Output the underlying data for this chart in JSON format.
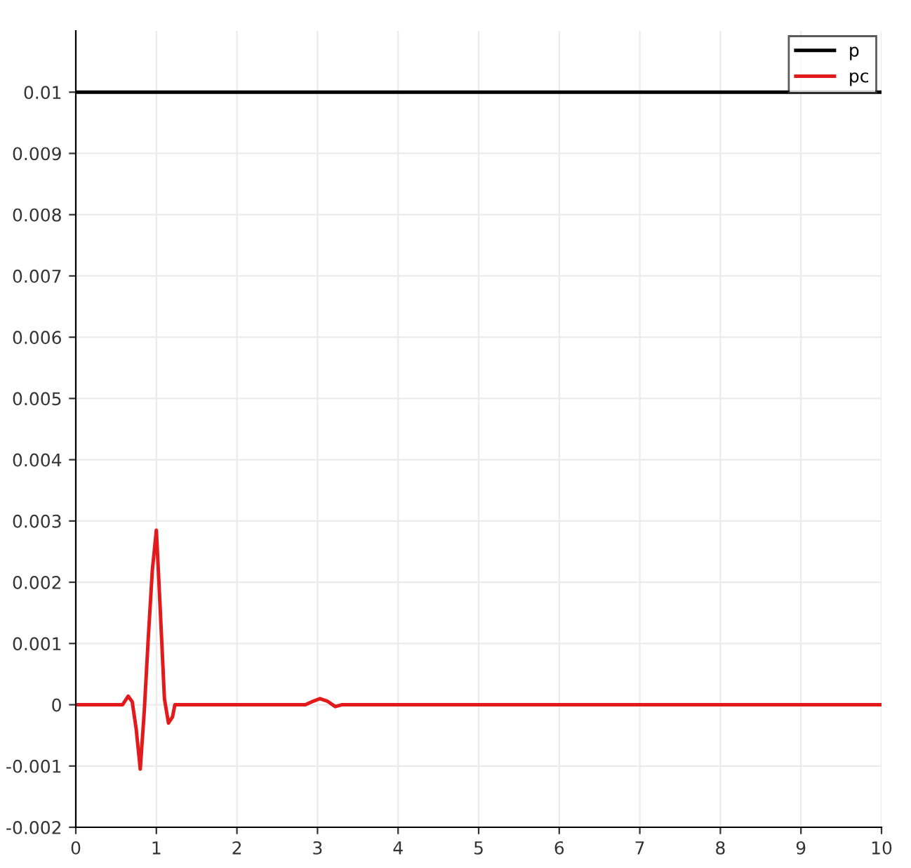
{
  "chart_data": {
    "type": "line",
    "xlim": [
      0,
      10
    ],
    "ylim": [
      -0.002,
      0.011
    ],
    "xticks": [
      0,
      1,
      2,
      3,
      4,
      5,
      6,
      7,
      8,
      9,
      10
    ],
    "yticks": [
      -0.002,
      -0.001,
      0,
      0.001,
      0.002,
      0.003,
      0.004,
      0.005,
      0.006,
      0.007,
      0.008,
      0.009,
      0.01
    ],
    "grid": true,
    "legend": "top right",
    "marker": "none",
    "line_style": "solid",
    "series": [
      {
        "name": "p",
        "color": "#000000",
        "x": [
          0,
          10
        ],
        "values": [
          0.01,
          0.01
        ]
      },
      {
        "name": "pc",
        "color": "#e31a1c",
        "x": [
          0,
          0.58,
          0.65,
          0.7,
          0.75,
          0.8,
          0.85,
          0.9,
          0.95,
          1.0,
          1.05,
          1.1,
          1.15,
          1.2,
          1.23,
          2.85,
          2.95,
          3.03,
          3.12,
          3.22,
          3.3,
          10
        ],
        "values": [
          0,
          0,
          0.00014,
          5e-05,
          -0.0004,
          -0.00105,
          -0.0001,
          0.0011,
          0.0022,
          0.00285,
          0.0015,
          0.0001,
          -0.0003,
          -0.0002,
          0,
          0,
          6e-05,
          0.0001,
          6e-05,
          -3e-05,
          0,
          0
        ]
      }
    ]
  }
}
